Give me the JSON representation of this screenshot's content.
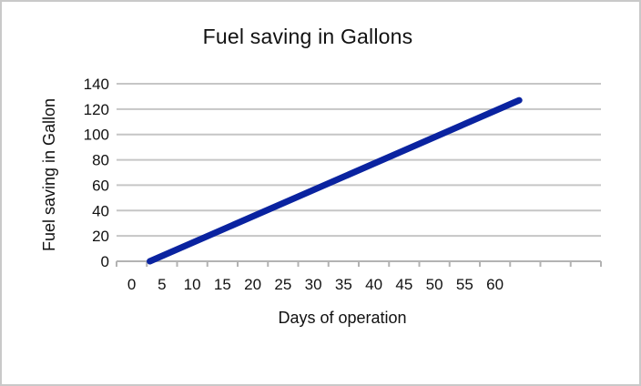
{
  "window": {
    "background_color": "#ffffff",
    "border_color": "#c9c9c9"
  },
  "chart_data": {
    "type": "line",
    "title": "Fuel saving in Gallons",
    "xlabel": "Days of operation",
    "ylabel": "Fuel saving in Gallon",
    "x_ticks": [
      0,
      5,
      10,
      15,
      20,
      25,
      30,
      35,
      40,
      45,
      50,
      55,
      60
    ],
    "y_ticks": [
      0,
      20,
      40,
      60,
      80,
      100,
      120,
      140
    ],
    "ylim": [
      0,
      140
    ],
    "x_tick_intervals_total": 16,
    "axis_note": "tick marks continue unlabeled beyond 60 to the right edge of the plot",
    "grid": "horizontal",
    "legend": "none",
    "markers": "none",
    "colors": {
      "line": "#0a23a0",
      "gridline": "#c6c6c6",
      "axis_line": "#b3b3b3",
      "text": "#111111"
    },
    "series": [
      {
        "name": "Fuel saving",
        "color": "#0a23a0",
        "points": [
          {
            "x": 3,
            "y": 0
          },
          {
            "x": 64,
            "y": 127
          }
        ],
        "slope_gallons_per_day": 2.1
      }
    ]
  }
}
